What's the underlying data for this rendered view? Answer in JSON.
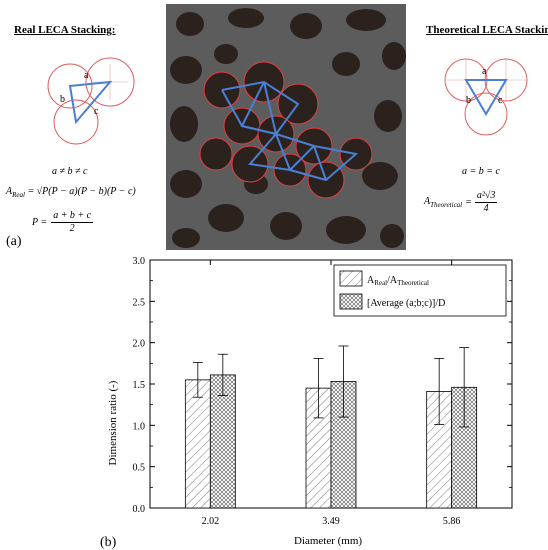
{
  "panel_a": {
    "label": "(a)",
    "left": {
      "title": "Real LECA Stacking:",
      "side_a": "a",
      "side_b": "b",
      "side_c": "c",
      "eq_inequality": "a ≠ b ≠ c",
      "eq_area_lhs": "A",
      "eq_area_sub": "Real",
      "eq_area_rhs": "= √P(P − a)(P − b)(P − c)",
      "eq_p_lhs": "P =",
      "eq_p_num": "a + b + c",
      "eq_p_den": "2"
    },
    "right": {
      "title": "Theoretical LECA Stacking:",
      "side_a": "a",
      "side_b": "b",
      "side_c": "c",
      "eq_equality": "a = b = c",
      "eq_area_lhs": "A",
      "eq_area_sub": "Theoretical",
      "eq_area_num": "a²√3",
      "eq_area_den": "4"
    },
    "colors": {
      "circle": "#e06060",
      "triangle": "#4a7fd4",
      "photo_bg": "#5a5a5a"
    }
  },
  "panel_b": {
    "label": "(b)"
  },
  "chart_data": {
    "type": "bar",
    "xlabel": "Diameter (mm)",
    "ylabel": "Dimension ratio (-)",
    "categories": [
      "2.02",
      "3.49",
      "5.86"
    ],
    "ylim": [
      0,
      3.0
    ],
    "yticks": [
      "0.0",
      "0.5",
      "1.0",
      "1.5",
      "2.0",
      "2.5",
      "3.0"
    ],
    "legend_position": "top-right",
    "series": [
      {
        "name_main": "A",
        "name_sub1": "Real",
        "name_sep": "/A",
        "name_sub2": "Theoretical",
        "pattern": "hatch",
        "values": [
          1.55,
          1.45,
          1.41
        ],
        "errors": [
          0.21,
          0.36,
          0.4
        ]
      },
      {
        "name_main": "[Average (a;b;c)]/D",
        "pattern": "crosshatch",
        "values": [
          1.61,
          1.53,
          1.46
        ],
        "errors": [
          0.25,
          0.43,
          0.48
        ]
      }
    ]
  }
}
